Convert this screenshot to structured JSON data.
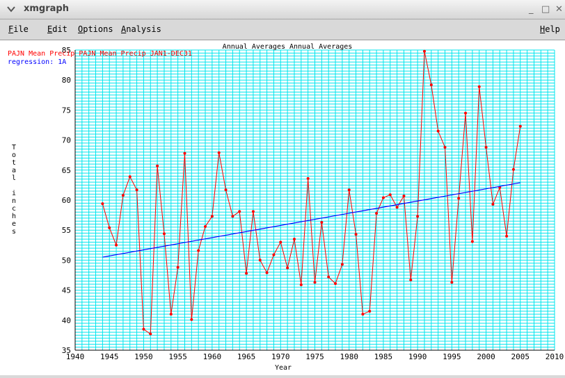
{
  "window": {
    "title": "xmgraph",
    "controls": {
      "minimize": "_",
      "maximize": "□",
      "close": "✕"
    }
  },
  "menubar": {
    "items": [
      {
        "label": "File"
      },
      {
        "label": "Edit"
      },
      {
        "label": "Options"
      },
      {
        "label": "Analysis"
      }
    ],
    "help_label": "Help"
  },
  "chart_data": {
    "type": "line",
    "title": "Annual Averages Annual Averages",
    "xlabel": "Year",
    "ylabel": "Total inches",
    "xlim": [
      1940,
      2010
    ],
    "ylim": [
      35,
      85
    ],
    "x_ticks": [
      1940,
      1945,
      1950,
      1955,
      1960,
      1965,
      1970,
      1975,
      1980,
      1985,
      1990,
      1995,
      2000,
      2005,
      2010
    ],
    "y_ticks": [
      35,
      40,
      45,
      50,
      55,
      60,
      65,
      70,
      75,
      80,
      85
    ],
    "grid": true,
    "colors": {
      "series": "#ff0000",
      "regression": "#0000ff",
      "grid": "#00e5ee",
      "legend_series": "#ff0000",
      "legend_regression": "#0000ff"
    },
    "legend": [
      {
        "label": "PAJN Mean Precip PAJN Mean Precip JAN1-DEC31"
      },
      {
        "label": "regression: 1A"
      }
    ],
    "series": [
      {
        "name": "PAJN Mean Precip",
        "x": [
          1944,
          1945,
          1946,
          1947,
          1948,
          1949,
          1950,
          1951,
          1952,
          1953,
          1954,
          1955,
          1956,
          1957,
          1958,
          1959,
          1960,
          1961,
          1962,
          1963,
          1964,
          1965,
          1966,
          1967,
          1968,
          1969,
          1970,
          1971,
          1972,
          1973,
          1974,
          1975,
          1976,
          1977,
          1978,
          1979,
          1980,
          1981,
          1982,
          1983,
          1984,
          1985,
          1986,
          1987,
          1988,
          1989,
          1990,
          1991,
          1992,
          1993,
          1994,
          1995,
          1996,
          1997,
          1998,
          1999,
          2000,
          2001,
          2002,
          2003,
          2004,
          2005
        ],
        "y": [
          59.4,
          55.4,
          52.5,
          60.8,
          63.9,
          61.7,
          38.5,
          37.7,
          65.7,
          54.4,
          41.0,
          48.8,
          67.8,
          40.1,
          51.6,
          55.6,
          57.3,
          67.9,
          61.7,
          57.3,
          58.1,
          47.8,
          58.1,
          50.0,
          47.9,
          50.9,
          53.0,
          48.7,
          53.5,
          45.9,
          63.6,
          46.3,
          56.3,
          47.2,
          46.1,
          49.3,
          61.7,
          54.3,
          41.0,
          41.5,
          57.8,
          60.4,
          60.9,
          58.8,
          60.7,
          46.7,
          57.3,
          84.8,
          79.2,
          71.5,
          68.8,
          46.3,
          60.3,
          74.5,
          53.1,
          78.9,
          68.8,
          59.3,
          62.1,
          54.0,
          65.1,
          72.3
        ]
      },
      {
        "name": "regression: 1A",
        "x": [
          1944,
          2005
        ],
        "y": [
          50.5,
          62.9
        ]
      }
    ]
  }
}
